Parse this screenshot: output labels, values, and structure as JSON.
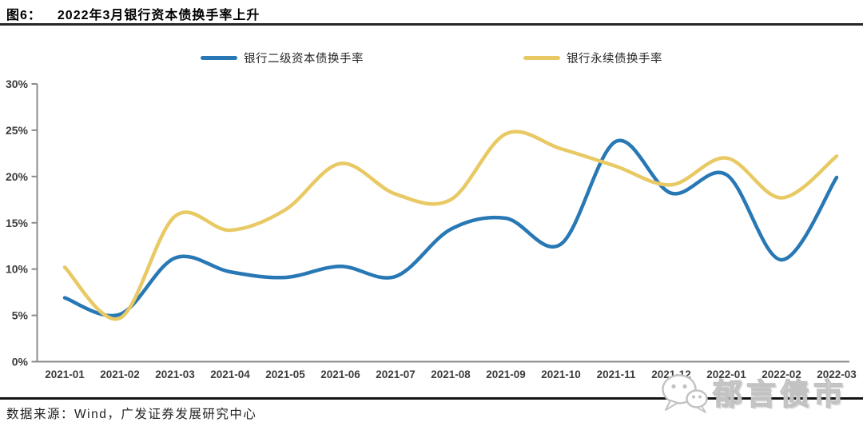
{
  "header": {
    "figure_label": "图6：",
    "title": "2022年3月银行资本债换手率上升"
  },
  "footer": {
    "source": "数据来源：Wind，广发证券发展研究中心"
  },
  "watermark": {
    "text": "郁言债市",
    "icon": "wechat-icon"
  },
  "chart_data": {
    "type": "line",
    "title": "2022年3月银行资本债换手率上升",
    "x": [
      "2021-01",
      "2021-02",
      "2021-03",
      "2021-04",
      "2021-05",
      "2021-06",
      "2021-07",
      "2021-08",
      "2021-09",
      "2021-10",
      "2021-11",
      "2021-12",
      "2022-01",
      "2022-02",
      "2022-03"
    ],
    "series": [
      {
        "name": "银行二级资本债换手率",
        "color": "#2878B5",
        "values": [
          6.9,
          5.1,
          11.2,
          9.7,
          9.1,
          10.3,
          9.2,
          14.3,
          15.5,
          12.7,
          23.8,
          18.2,
          20.2,
          11.0,
          19.9
        ]
      },
      {
        "name": "银行永续债换手率",
        "color": "#E8C964",
        "values": [
          10.2,
          4.7,
          15.7,
          14.2,
          16.4,
          21.4,
          18.1,
          17.5,
          24.6,
          23.0,
          21.1,
          19.1,
          22.0,
          17.7,
          22.2
        ]
      }
    ],
    "ylim": [
      0,
      30
    ],
    "ytick_step": 5,
    "ytick_labels": [
      "0%",
      "5%",
      "10%",
      "15%",
      "20%",
      "25%",
      "30%"
    ],
    "unit": "percent",
    "grid": false,
    "smooth": true,
    "legend_position": "top",
    "axis_color": "#8C8C8C",
    "label_color": "#3C3C3C"
  }
}
